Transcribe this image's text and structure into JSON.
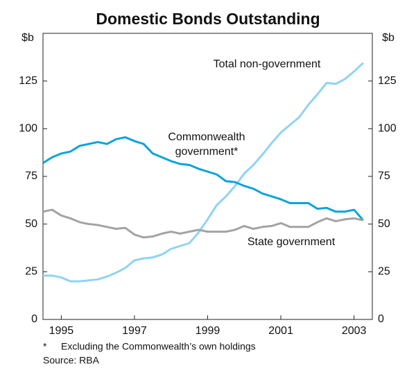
{
  "chart_data": {
    "type": "line",
    "title": "Domestic Bonds Outstanding",
    "y_label": "$b",
    "y2_label": "$b",
    "x": [
      1994.5,
      1994.75,
      1995,
      1995.25,
      1995.5,
      1995.75,
      1996,
      1996.25,
      1996.5,
      1996.75,
      1997,
      1997.25,
      1997.5,
      1997.75,
      1998,
      1998.25,
      1998.5,
      1998.75,
      1999,
      1999.25,
      1999.5,
      1999.75,
      2000,
      2000.25,
      2000.5,
      2000.75,
      2001,
      2001.25,
      2001.5,
      2001.75,
      2002,
      2002.25,
      2002.5,
      2002.75,
      2003,
      2003.25
    ],
    "xlim": [
      1994.5,
      2003.5
    ],
    "xticks": [
      1995,
      1997,
      1999,
      2001,
      2003
    ],
    "ylim": [
      0,
      150
    ],
    "yticks": [
      0,
      25,
      50,
      75,
      100,
      125
    ],
    "y2lim": [
      0,
      150
    ],
    "y2ticks": [
      0,
      25,
      50,
      75,
      100,
      125
    ],
    "grid": false,
    "series": [
      {
        "name": "Total non-government",
        "color": "#8fd3f4",
        "values": [
          23,
          23,
          22,
          20,
          20,
          20.5,
          21,
          22.5,
          24.5,
          27,
          31,
          32,
          32.5,
          34,
          37,
          38.5,
          40,
          45.5,
          52.5,
          60,
          64.5,
          70,
          76.5,
          81,
          86.5,
          92.5,
          98,
          102,
          106,
          112.5,
          118,
          124,
          123.5,
          126,
          130,
          134.5
        ]
      },
      {
        "name": "Commonwealth government*",
        "color": "#0ba3dc",
        "values": [
          82,
          85,
          87,
          88,
          91,
          92,
          93,
          92,
          94.5,
          95.5,
          93.5,
          92,
          87,
          85,
          83,
          81.5,
          81,
          79,
          77.5,
          76,
          72.5,
          72,
          70,
          68.5,
          66,
          64.5,
          63,
          61,
          61,
          61,
          58,
          58.5,
          56.5,
          56.5,
          57.5,
          52
        ]
      },
      {
        "name": "State government",
        "color": "#a3a3a3",
        "values": [
          56.5,
          57.5,
          54.5,
          53,
          51,
          50,
          49.5,
          48.5,
          47.5,
          48,
          44.5,
          43,
          43.5,
          45,
          46,
          45,
          46,
          47,
          46,
          46,
          46,
          47,
          49,
          47.5,
          48.5,
          49,
          50.5,
          48.5,
          48.5,
          48.5,
          51,
          53,
          51.5,
          52.5,
          53,
          52
        ]
      }
    ],
    "footnote_marker": "*",
    "footnote": "Excluding the Commonwealth’s own holdings",
    "source": "Source: RBA"
  }
}
